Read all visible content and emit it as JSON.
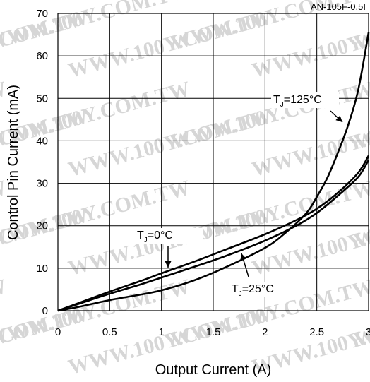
{
  "corner_text": "AN-105F-0.5I",
  "watermark_text": "WWW.100Y.COM.TW",
  "chart_data": {
    "type": "line",
    "title": "",
    "xlabel": "Output Current (A)",
    "ylabel": "Control Pin Current (mA)",
    "xlim": [
      0,
      3
    ],
    "ylim": [
      0,
      70
    ],
    "x_ticks": [
      "0",
      "0.5",
      "1",
      "1.5",
      "2",
      "2.5",
      "3"
    ],
    "y_ticks": [
      "0",
      "10",
      "20",
      "30",
      "40",
      "50",
      "60",
      "70"
    ],
    "grid": true,
    "series": [
      {
        "name": "TJ=0°C",
        "x": [
          0,
          0.2,
          0.5,
          0.8,
          1.0,
          1.3,
          1.6,
          2.0,
          2.3,
          2.5,
          2.7,
          2.9,
          3.0
        ],
        "y": [
          0,
          1.8,
          4.5,
          7.0,
          8.8,
          11.4,
          14.2,
          18.0,
          21.3,
          24.0,
          27.7,
          32.5,
          36.5
        ]
      },
      {
        "name": "TJ=25°C",
        "x": [
          0,
          0.2,
          0.5,
          0.8,
          1.0,
          1.3,
          1.6,
          2.0,
          2.3,
          2.5,
          2.7,
          2.9,
          3.0
        ],
        "y": [
          0,
          1.6,
          4.0,
          6.2,
          7.8,
          10.2,
          12.7,
          16.5,
          20.0,
          23.0,
          27.0,
          31.5,
          35.5
        ]
      },
      {
        "name": "TJ=125°C",
        "x": [
          0,
          0.2,
          0.5,
          0.8,
          1.0,
          1.3,
          1.6,
          2.0,
          2.2,
          2.4,
          2.5,
          2.6,
          2.7,
          2.8,
          2.9,
          3.0
        ],
        "y": [
          0,
          0.9,
          2.5,
          3.8,
          4.8,
          7.0,
          10.0,
          14.8,
          18.4,
          23.0,
          26.8,
          31.2,
          37.0,
          43.5,
          52.0,
          65.5
        ]
      }
    ],
    "annotations": [
      {
        "base": "T",
        "sub": "J",
        "rest": "=125°C",
        "series": "TJ=125°C"
      },
      {
        "base": "T",
        "sub": "J",
        "rest": "=0°C",
        "series": "TJ=0°C"
      },
      {
        "base": "T",
        "sub": "J",
        "rest": "=25°C",
        "series": "TJ=25°C"
      }
    ]
  }
}
